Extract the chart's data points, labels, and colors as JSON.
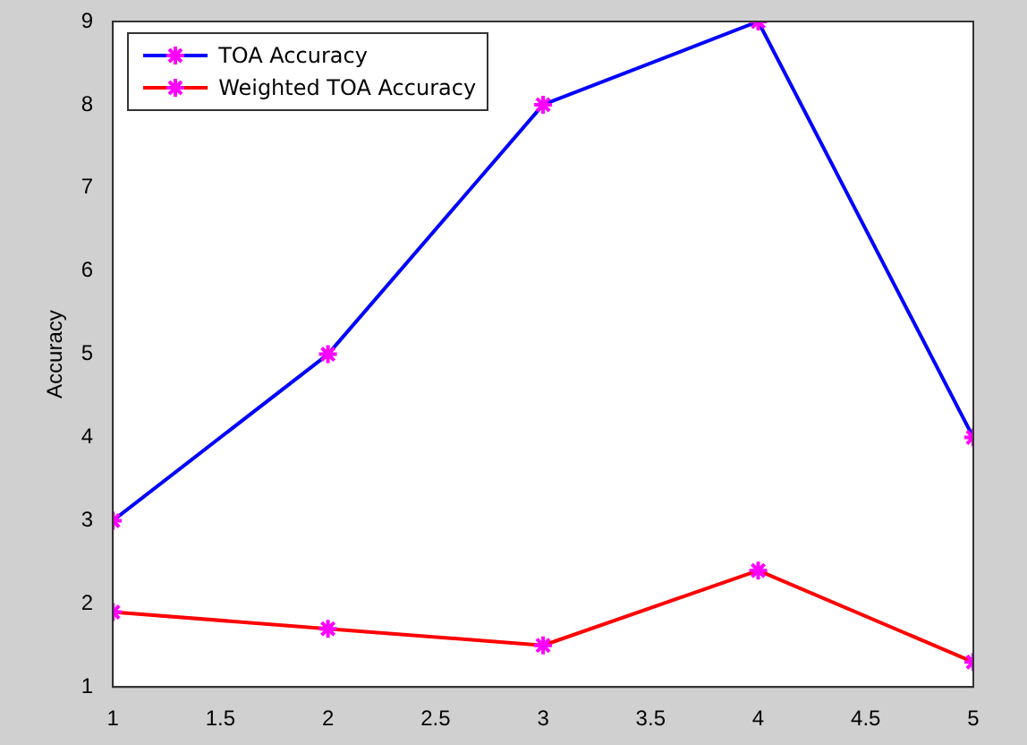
{
  "chart_data": {
    "type": "line",
    "ylabel": "Accuracy",
    "x": [
      1,
      2,
      3,
      4,
      5
    ],
    "series": [
      {
        "name": "TOA Accuracy",
        "color": "#0000ff",
        "colors": [
          "#ff00ff",
          "#ff00ff",
          "#ff00ff",
          "#ff00ff",
          "#ff00ff"
        ],
        "values": [
          3,
          5,
          8,
          9,
          4
        ]
      },
      {
        "name": "Weighted TOA Accuracy",
        "color": "#ff0000",
        "colors": [
          "#ff00ff",
          "#ff00ff",
          "#ff00ff",
          "#ff00ff",
          "#ff00ff"
        ],
        "values": [
          1.9,
          1.7,
          1.5,
          2.4,
          1.3
        ]
      }
    ],
    "xlim": [
      1,
      5
    ],
    "xticks": [
      1,
      1.5,
      2,
      2.5,
      3,
      3.5,
      4,
      4.5,
      5
    ],
    "ylim": [
      1,
      9
    ],
    "yticks": [
      1,
      2,
      3,
      4,
      5,
      6,
      7,
      8,
      9
    ],
    "grid": false,
    "legend": "top left",
    "marker": "cross",
    "line_style": "solid"
  }
}
